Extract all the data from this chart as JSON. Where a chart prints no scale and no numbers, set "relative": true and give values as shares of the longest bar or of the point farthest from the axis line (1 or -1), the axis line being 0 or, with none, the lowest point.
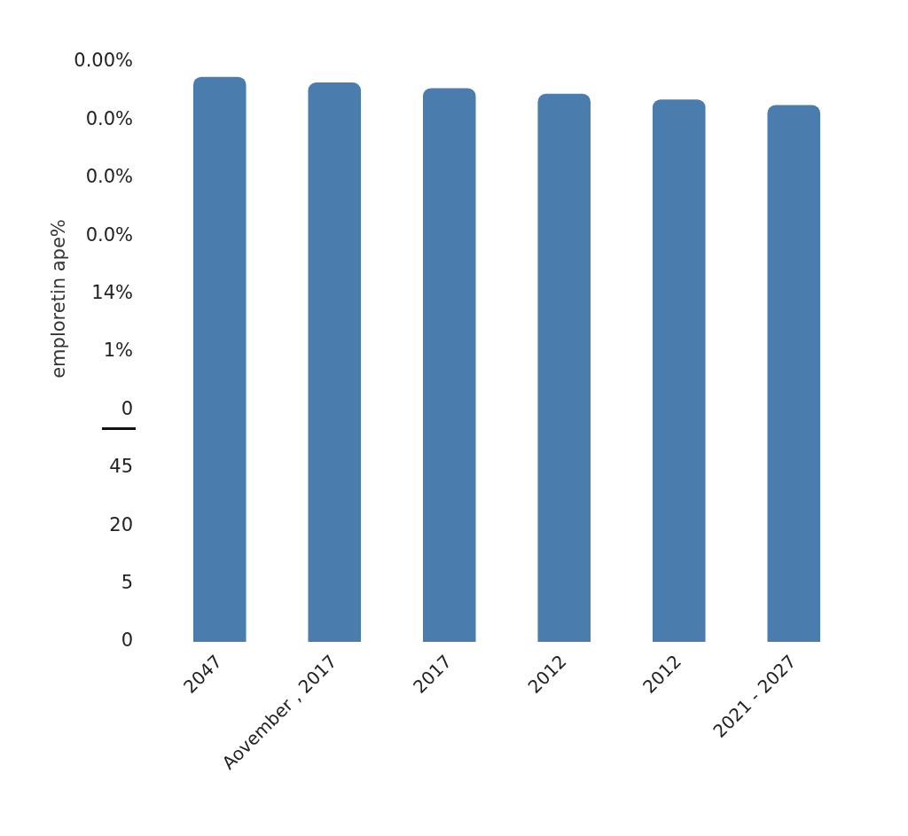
{
  "chart_data": {
    "type": "bar",
    "relative": true,
    "ylabel": "emploretin ape%",
    "categories": [
      "2047",
      "Aovember , 2017",
      "2017",
      "2012",
      "2012",
      "2021 - 2027"
    ],
    "values": [
      1,
      0.99,
      0.98,
      0.97,
      0.96,
      0.95
    ],
    "color": "#4a7cad",
    "annotations": [
      "0.00%",
      "0.0%",
      "0.0%",
      "0.0%",
      "14%",
      "1%",
      "0",
      "45",
      "20",
      "5",
      "0"
    ]
  }
}
